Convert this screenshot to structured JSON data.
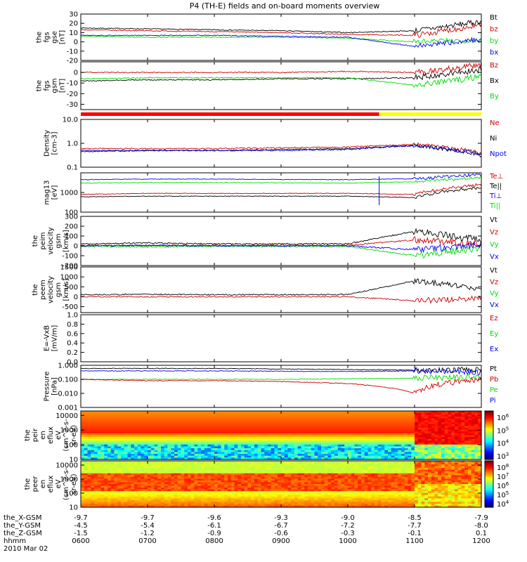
{
  "title": "P4 (TH-E) fields and on-board moments overview",
  "colors": {
    "black": "#000000",
    "red": "#cc0000",
    "green": "#00dd00",
    "blue": "#0000ee",
    "yellow": "#ffff00"
  },
  "panels": [
    {
      "id": "fgs-gse",
      "ylabel": [
        "the",
        "fgs",
        "gse",
        "[nT]"
      ],
      "ticks": [
        "30",
        "20",
        "10",
        "0",
        "-10",
        "-20"
      ],
      "ylim": [
        -20,
        30
      ],
      "log": false,
      "legend": [
        {
          "text": "Bt",
          "color": "black"
        },
        {
          "text": "bz",
          "color": "red"
        },
        {
          "text": "by",
          "color": "green"
        },
        {
          "text": "bx",
          "color": "blue"
        }
      ]
    },
    {
      "id": "fgs-gsm",
      "ylabel": [
        "the",
        "fgs",
        "gsm",
        "[nT]"
      ],
      "ticks": [
        "0",
        "-10",
        "-20",
        "-30"
      ],
      "ylim": [
        -35,
        10
      ],
      "log": false,
      "legend": [
        {
          "text": "Bz",
          "color": "red"
        },
        {
          "text": "Bx",
          "color": "black"
        },
        {
          "text": "By",
          "color": "green"
        }
      ]
    },
    {
      "id": "density",
      "ylabel": [
        "Density",
        "[cm-3]"
      ],
      "ticks": [
        "10.0",
        "1.0",
        "0.1"
      ],
      "ylim": [
        0.1,
        10
      ],
      "log": true,
      "legend": [
        {
          "text": "Ne",
          "color": "red"
        },
        {
          "text": "Ni",
          "color": "black"
        },
        {
          "text": "Npot",
          "color": "blue"
        }
      ]
    },
    {
      "id": "temperature",
      "ylabel": [
        "mag13",
        "[eV]"
      ],
      "ticks": [
        "1000",
        "100"
      ],
      "ylim": [
        100,
        10000
      ],
      "log": true,
      "legend": [
        {
          "text": "Te⊥",
          "color": "red"
        },
        {
          "text": "Te||",
          "color": "black"
        },
        {
          "text": "Ti⊥",
          "color": "blue"
        },
        {
          "text": "Ti||",
          "color": "green"
        }
      ]
    },
    {
      "id": "peim-velocity",
      "ylabel": [
        "the",
        "peim",
        "velocity",
        "gsm",
        "[km/s]"
      ],
      "ticks": [
        "300",
        "200",
        "100",
        "0",
        "-100",
        "-200"
      ],
      "ylim": [
        -200,
        300
      ],
      "log": false,
      "legend": [
        {
          "text": "Vt",
          "color": "black"
        },
        {
          "text": "Vz",
          "color": "red"
        },
        {
          "text": "Vy",
          "color": "green"
        },
        {
          "text": "Vx",
          "color": "blue"
        }
      ]
    },
    {
      "id": "peem-velocity",
      "ylabel": [
        "the",
        "peem",
        "velocity",
        "gsm",
        "[km/s]"
      ],
      "ticks": [
        "1500",
        "1000",
        "500",
        "0",
        "-500"
      ],
      "ylim": [
        -800,
        1500
      ],
      "log": false,
      "legend": [
        {
          "text": "Vt",
          "color": "black"
        },
        {
          "text": "Vz",
          "color": "red"
        },
        {
          "text": "Vy",
          "color": "green"
        },
        {
          "text": "Vx",
          "color": "blue"
        }
      ]
    },
    {
      "id": "efield",
      "ylabel": [
        "E=-VxB",
        "[mV/m]"
      ],
      "ticks": [
        "1.0",
        "0.8",
        "0.6",
        "0.4",
        "0.2",
        "0.0"
      ],
      "ylim": [
        0,
        1
      ],
      "log": false,
      "legend": [
        {
          "text": "Ez",
          "color": "red"
        },
        {
          "text": "Ey",
          "color": "green"
        },
        {
          "text": "Ex",
          "color": "blue"
        }
      ]
    },
    {
      "id": "pressure",
      "ylabel": [
        "Pressure",
        "[nPa]"
      ],
      "ticks": [
        "1.000",
        "0.100",
        "0.010",
        "0.001"
      ],
      "ylim": [
        0.001,
        1
      ],
      "log": true,
      "legend": [
        {
          "text": "Pt",
          "color": "black"
        },
        {
          "text": "Pb",
          "color": "red"
        },
        {
          "text": "Pe",
          "color": "green"
        },
        {
          "text": "Pi",
          "color": "blue"
        }
      ]
    },
    {
      "id": "peir-eflux",
      "ylabel": [
        "the",
        "peir",
        "en",
        "eflux",
        "eV",
        "(cm^2-s-",
        "sr-eV)"
      ],
      "ticks": [
        "10000",
        "1000",
        "100",
        "10"
      ],
      "ylim": [
        10,
        20000
      ],
      "log": true,
      "colorbar": [
        "10^6",
        "10^5",
        "10^4",
        "10^3"
      ]
    },
    {
      "id": "peer-eflux",
      "ylabel": [
        "the",
        "peer",
        "en",
        "eflux",
        "eV",
        "(cm^2-s-",
        "sr-eV)"
      ],
      "ticks": [
        "10000",
        "1000",
        "100",
        "10"
      ],
      "ylim": [
        10,
        20000
      ],
      "log": true,
      "colorbar": [
        "10^8",
        "10^7",
        "10^6",
        "10^5",
        "10^4"
      ]
    }
  ],
  "footer": {
    "rows": [
      {
        "label": "the_X-GSM",
        "values": [
          "-9.7",
          "-9.7",
          "-9.6",
          "-9.3",
          "-9.0",
          "-8.5",
          "-7.9"
        ]
      },
      {
        "label": "the_Y-GSM",
        "values": [
          "-4.5",
          "-5.4",
          "-6.1",
          "-6.7",
          "-7.2",
          "-7.7",
          "-8.0"
        ]
      },
      {
        "label": "the_Z-GSM",
        "values": [
          "-1.5",
          "-1.2",
          "-0.9",
          "-0.6",
          "-0.3",
          "-0.1",
          "0.1"
        ]
      },
      {
        "label": "hhmm",
        "values": [
          "0600",
          "0700",
          "0800",
          "0900",
          "1000",
          "1100",
          "1200"
        ]
      }
    ],
    "date": "2010 Mar 02"
  },
  "chart_data": [
    {
      "type": "line",
      "title": "P4 (TH-E) fields and on-board moments overview",
      "xlabel": "hhmm",
      "categories": [
        "0600",
        "0700",
        "0800",
        "0900",
        "1000",
        "1100",
        "1200"
      ],
      "ylabel": "the fgs gse [nT]",
      "ylim": [
        -20,
        30
      ],
      "series": [
        {
          "name": "Bt",
          "color": "black",
          "values": [
            15,
            14,
            13,
            12,
            10,
            12,
            22
          ]
        },
        {
          "name": "bz",
          "color": "red",
          "values": [
            13,
            12,
            11,
            10,
            8,
            7,
            18
          ]
        },
        {
          "name": "by",
          "color": "green",
          "values": [
            6,
            5,
            5,
            5,
            4,
            0,
            2
          ]
        },
        {
          "name": "bx",
          "color": "blue",
          "values": [
            7,
            7,
            7,
            6,
            5,
            -5,
            3
          ]
        }
      ]
    },
    {
      "type": "line",
      "ylabel": "the fgs gsm [nT]",
      "ylim": [
        -35,
        10
      ],
      "categories": [
        "0600",
        "0700",
        "0800",
        "0900",
        "1000",
        "1100",
        "1200"
      ],
      "series": [
        {
          "name": "Bz",
          "color": "red",
          "values": [
            0,
            0,
            0,
            0,
            1,
            0,
            7
          ]
        },
        {
          "name": "Bx",
          "color": "black",
          "values": [
            -8,
            -7,
            -7,
            -6,
            -6,
            -5,
            3
          ]
        },
        {
          "name": "By",
          "color": "green",
          "values": [
            -6,
            -5,
            -5,
            -5,
            -5,
            -12,
            -4
          ]
        }
      ]
    },
    {
      "type": "line",
      "ylabel": "Density [cm-3]",
      "ylim": [
        0.1,
        10
      ],
      "log_y": true,
      "categories": [
        "0600",
        "0700",
        "0800",
        "0900",
        "1000",
        "1100",
        "1200"
      ],
      "series": [
        {
          "name": "Ne",
          "color": "red",
          "values": [
            0.6,
            0.6,
            0.6,
            0.65,
            0.7,
            0.9,
            0.4
          ]
        },
        {
          "name": "Ni",
          "color": "black",
          "values": [
            0.45,
            0.5,
            0.5,
            0.55,
            0.6,
            0.8,
            0.3
          ]
        },
        {
          "name": "Npot",
          "color": "blue",
          "values": [
            0.5,
            0.5,
            0.5,
            0.5,
            0.55,
            0.8,
            0.35
          ]
        }
      ]
    },
    {
      "type": "line",
      "ylabel": "mag13 [eV]",
      "ylim": [
        100,
        10000
      ],
      "log_y": true,
      "categories": [
        "0600",
        "0700",
        "0800",
        "0900",
        "1000",
        "1100",
        "1200"
      ],
      "series": [
        {
          "name": "Te⊥",
          "color": "red",
          "values": [
            800,
            900,
            900,
            900,
            900,
            800,
            2500
          ]
        },
        {
          "name": "Te||",
          "color": "black",
          "values": [
            600,
            650,
            650,
            650,
            650,
            550,
            1800
          ]
        },
        {
          "name": "Ti⊥",
          "color": "blue",
          "values": [
            4500,
            4800,
            4800,
            4600,
            4500,
            5000,
            8000
          ]
        },
        {
          "name": "Ti||",
          "color": "green",
          "values": [
            3000,
            3200,
            3200,
            3100,
            3000,
            3500,
            5500
          ]
        }
      ]
    },
    {
      "type": "line",
      "ylabel": "the peim velocity gsm [km/s]",
      "ylim": [
        -200,
        300
      ],
      "categories": [
        "0600",
        "0700",
        "0800",
        "0900",
        "1000",
        "1100",
        "1200"
      ],
      "series": [
        {
          "name": "Vt",
          "color": "black",
          "values": [
            20,
            30,
            20,
            20,
            20,
            150,
            60
          ]
        },
        {
          "name": "Vz",
          "color": "red",
          "values": [
            5,
            5,
            5,
            5,
            5,
            60,
            20
          ]
        },
        {
          "name": "Vy",
          "color": "green",
          "values": [
            -5,
            -10,
            -5,
            -5,
            -5,
            -100,
            -20
          ]
        },
        {
          "name": "Vx",
          "color": "blue",
          "values": [
            0,
            5,
            0,
            0,
            0,
            -40,
            10
          ]
        }
      ]
    },
    {
      "type": "line",
      "ylabel": "the peem velocity gsm [km/s]",
      "ylim": [
        -800,
        1500
      ],
      "categories": [
        "0600",
        "0700",
        "0800",
        "0900",
        "1000",
        "1100",
        "1200"
      ],
      "series": [
        {
          "name": "Vt",
          "color": "black",
          "values": [
            100,
            120,
            100,
            100,
            110,
            800,
            400
          ]
        },
        {
          "name": "Vz",
          "color": "red",
          "values": [
            0,
            0,
            0,
            0,
            0,
            -200,
            -100
          ]
        }
      ]
    },
    {
      "type": "heatmap",
      "ylabel": "the peir en eflux eV (cm^2-s-sr-eV)",
      "ylim": [
        10,
        20000
      ],
      "log_y": true,
      "categories": [
        "0600",
        "0700",
        "0800",
        "0900",
        "1000",
        "1100",
        "1200"
      ],
      "colorbar": [
        "10^3",
        "10^4",
        "10^5",
        "10^6"
      ]
    },
    {
      "type": "heatmap",
      "ylabel": "the peer en eflux eV (cm^2-s-sr-eV)",
      "ylim": [
        10,
        20000
      ],
      "log_y": true,
      "categories": [
        "0600",
        "0700",
        "0800",
        "0900",
        "1000",
        "1100",
        "1200"
      ],
      "colorbar": [
        "10^4",
        "10^5",
        "10^6",
        "10^7",
        "10^8"
      ]
    }
  ]
}
